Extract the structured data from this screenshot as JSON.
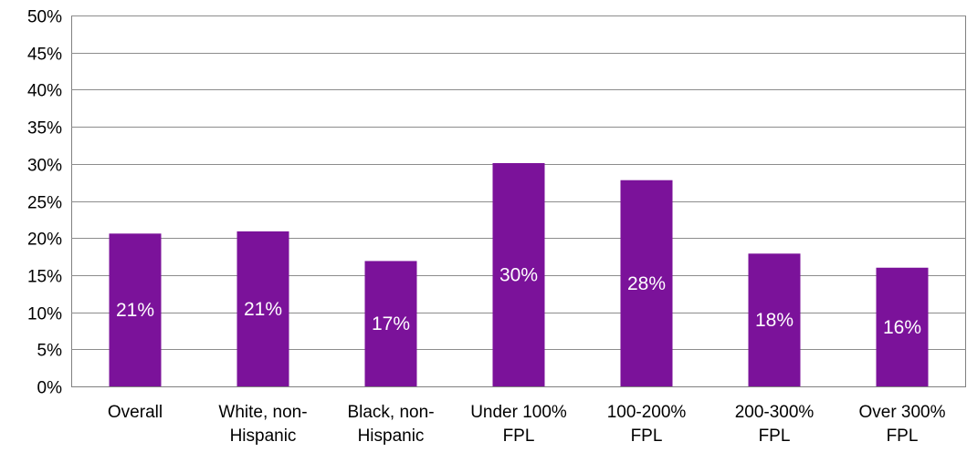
{
  "chart_data": {
    "type": "bar",
    "categories": [
      [
        "Overall"
      ],
      [
        "White, non-",
        "Hispanic"
      ],
      [
        "Black, non-",
        "Hispanic"
      ],
      [
        "Under 100%",
        "FPL"
      ],
      [
        "100-200%",
        "FPL"
      ],
      [
        "200-300%",
        "FPL"
      ],
      [
        "Over 300%",
        "FPL"
      ]
    ],
    "values": [
      20.6,
      20.9,
      16.9,
      30.1,
      27.8,
      17.9,
      16.0
    ],
    "data_labels": [
      "21%",
      "21%",
      "17%",
      "30%",
      "28%",
      "18%",
      "16%"
    ],
    "ylim": [
      0,
      50
    ],
    "yticks": [
      0,
      5,
      10,
      15,
      20,
      25,
      30,
      35,
      40,
      45,
      50
    ],
    "ytick_labels": [
      "0%",
      "5%",
      "10%",
      "15%",
      "20%",
      "25%",
      "30%",
      "35%",
      "40%",
      "45%",
      "50%"
    ],
    "grid": true,
    "title": "",
    "xlabel": "",
    "ylabel": "",
    "colors": {
      "bar": "#7B129A",
      "grid": "#8C8C8C",
      "axis": "#808080",
      "label_text": "#ffffff",
      "tick_text": "#000000"
    }
  }
}
